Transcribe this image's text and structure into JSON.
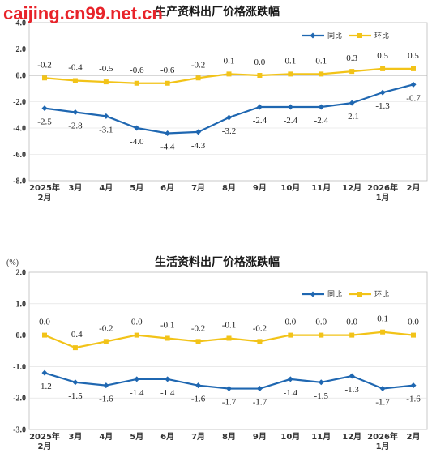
{
  "watermark": "caijing.cn99.net.cn",
  "colors": {
    "yoy": "#1f67b1",
    "mom": "#f2c318",
    "grid": "#dddddd",
    "frame": "#bbbbbb"
  },
  "chart_data": [
    {
      "type": "line",
      "title": "生产资料出厂价格涨跌幅",
      "unit": "",
      "ylim": [
        -8,
        4
      ],
      "yticks": [
        "-8.0",
        "-6.0",
        "-4.0",
        "-2.0",
        "0.0",
        "2.0",
        "4.0"
      ],
      "ytick_values": [
        -8,
        -6,
        -4,
        -2,
        0,
        2,
        4
      ],
      "categories": [
        [
          "2025年",
          "2月"
        ],
        [
          "3月"
        ],
        [
          "4月"
        ],
        [
          "5月"
        ],
        [
          "6月"
        ],
        [
          "7月"
        ],
        [
          "8月"
        ],
        [
          "9月"
        ],
        [
          "10月"
        ],
        [
          "11月"
        ],
        [
          "12月"
        ],
        [
          "2026年",
          "1月"
        ],
        [
          "2月"
        ]
      ],
      "legend": [
        "同比",
        "环比"
      ],
      "series": [
        {
          "name": "同比",
          "color": "#1f67b1",
          "values": [
            -2.5,
            -2.8,
            -3.1,
            -4.0,
            -4.4,
            -4.3,
            -3.2,
            -2.4,
            -2.4,
            -2.4,
            -2.1,
            -1.3,
            -0.7
          ],
          "labels": [
            "-2.5",
            "-2.8",
            "-3.1",
            "-4.0",
            "-4.4",
            "-4.3",
            "-3.2",
            "-2.4",
            "-2.4",
            "-2.4",
            "-2.1",
            "-1.3",
            "-0.7"
          ]
        },
        {
          "name": "环比",
          "color": "#f2c318",
          "values": [
            -0.2,
            -0.4,
            -0.5,
            -0.6,
            -0.6,
            -0.2,
            0.1,
            0.0,
            0.1,
            0.1,
            0.3,
            0.5,
            0.5
          ],
          "labels": [
            "-0.2",
            "-0.4",
            "-0.5",
            "-0.6",
            "-0.6",
            "-0.2",
            "0.1",
            "0.0",
            "0.1",
            "0.1",
            "0.3",
            "0.5",
            "0.5"
          ]
        }
      ]
    },
    {
      "type": "line",
      "title": "生活资料出厂价格涨跌幅",
      "unit": "(%)",
      "ylim": [
        -3,
        2
      ],
      "yticks": [
        "-3.0",
        "-2.0",
        "-1.0",
        "0.0",
        "1.0",
        "2.0"
      ],
      "ytick_values": [
        -3,
        -2,
        -1,
        0,
        1,
        2
      ],
      "categories": [
        [
          "2025年",
          "2月"
        ],
        [
          "3月"
        ],
        [
          "4月"
        ],
        [
          "5月"
        ],
        [
          "6月"
        ],
        [
          "7月"
        ],
        [
          "8月"
        ],
        [
          "9月"
        ],
        [
          "10月"
        ],
        [
          "11月"
        ],
        [
          "12月"
        ],
        [
          "2026年",
          "1月"
        ],
        [
          "2月"
        ]
      ],
      "legend": [
        "同比",
        "环比"
      ],
      "series": [
        {
          "name": "同比",
          "color": "#1f67b1",
          "values": [
            -1.2,
            -1.5,
            -1.6,
            -1.4,
            -1.4,
            -1.6,
            -1.7,
            -1.7,
            -1.4,
            -1.5,
            -1.3,
            -1.7,
            -1.6
          ],
          "labels": [
            "-1.2",
            "-1.5",
            "-1.6",
            "-1.4",
            "-1.4",
            "-1.6",
            "-1.7",
            "-1.7",
            "-1.4",
            "-1.5",
            "-1.3",
            "-1.7",
            "-1.6"
          ]
        },
        {
          "name": "环比",
          "color": "#f2c318",
          "values": [
            0.0,
            -0.4,
            -0.2,
            0.0,
            -0.1,
            -0.2,
            -0.1,
            -0.2,
            0.0,
            0.0,
            0.0,
            0.1,
            0.0
          ],
          "labels": [
            "0.0",
            "-0.4",
            "-0.2",
            "0.0",
            "-0.1",
            "-0.2",
            "-0.1",
            "-0.2",
            "0.0",
            "0.0",
            "0.0",
            "0.1",
            "0.0"
          ]
        }
      ]
    }
  ]
}
